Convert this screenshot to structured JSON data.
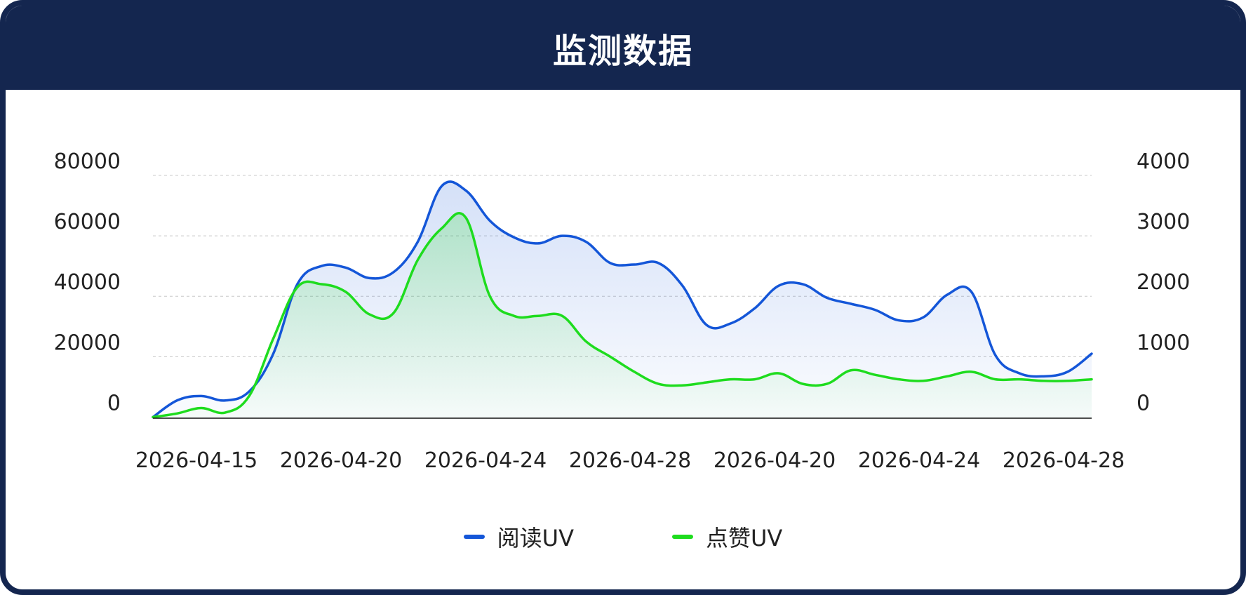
{
  "header": {
    "title": "监测数据"
  },
  "colors": {
    "header_bg": "#14264f",
    "read_uv": "#1456d8",
    "like_uv": "#1edc1e",
    "axis": "#111111",
    "grid": "#c8c8c8"
  },
  "legend": [
    {
      "name": "阅读UV",
      "color": "#1456d8"
    },
    {
      "name": "点赞UV",
      "color": "#1edc1e"
    }
  ],
  "chart_data": {
    "type": "area",
    "title": "",
    "grid": true,
    "legend_position": "bottom",
    "x_tick_labels": [
      "2026-04-15",
      "2026-04-20",
      "2026-04-24",
      "2026-04-28",
      "2026-04-20",
      "2026-04-24",
      "2026-04-28"
    ],
    "y_left": {
      "ticks": [
        0,
        20000,
        40000,
        60000,
        80000
      ],
      "range": [
        -5000,
        80000
      ]
    },
    "y_right": {
      "ticks": [
        0,
        1000,
        2000,
        3000,
        4000
      ],
      "range": [
        -250,
        4000
      ]
    },
    "series": [
      {
        "name": "阅读UV",
        "axis": "left",
        "color": "#1456d8",
        "values": [
          0,
          5500,
          7000,
          5500,
          8500,
          21000,
          44000,
          50000,
          49500,
          46000,
          48000,
          58000,
          76500,
          75000,
          65000,
          59500,
          57500,
          60000,
          58000,
          51000,
          50500,
          51000,
          43500,
          30500,
          31000,
          36000,
          43500,
          44000,
          39500,
          37500,
          35500,
          32000,
          33000,
          40500,
          41500,
          20500,
          14500,
          13500,
          15000,
          21000
        ]
      },
      {
        "name": "点赞UV",
        "axis": "left",
        "color": "#1edc1e",
        "values": [
          0,
          1200,
          3000,
          1500,
          7000,
          26000,
          43000,
          44000,
          41500,
          34000,
          34500,
          52000,
          62500,
          66000,
          40000,
          33500,
          33500,
          33500,
          25000,
          20000,
          15000,
          11000,
          10500,
          11500,
          12500,
          12500,
          14500,
          11000,
          11000,
          15500,
          14000,
          12500,
          12000,
          13500,
          15000,
          12500,
          12500,
          12000,
          12000,
          12500
        ]
      }
    ]
  }
}
